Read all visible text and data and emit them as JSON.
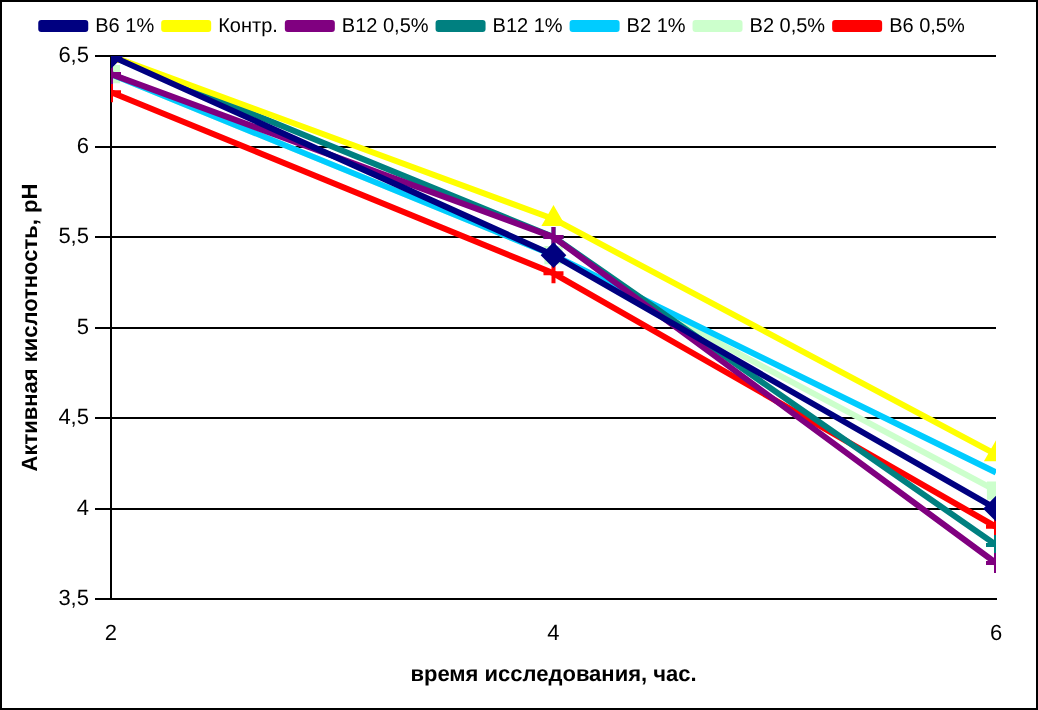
{
  "chart_data": {
    "type": "line",
    "xlabel": "время исследования, час.",
    "ylabel": "Активная кислотность, рН",
    "x": [
      2,
      4,
      6
    ],
    "xlim": [
      2,
      6
    ],
    "xticks": [
      2,
      4,
      6
    ],
    "ylim": [
      3.5,
      6.5
    ],
    "yticks": [
      {
        "value": 3.5,
        "label": "3,5"
      },
      4,
      {
        "value": 4.5,
        "label": "4,5"
      },
      5,
      {
        "value": 5.5,
        "label": "5,5"
      },
      6,
      {
        "value": 6.5,
        "label": "6,5"
      }
    ],
    "grid": "y",
    "legend": "top",
    "series": [
      {
        "name": "B6 1%",
        "color": "#000080",
        "marker": "diamond",
        "values": [
          6.5,
          5.4,
          4.0
        ]
      },
      {
        "name": "Контр.",
        "color": "#ffff00",
        "marker": "triangle",
        "values": [
          6.5,
          5.6,
          4.3
        ]
      },
      {
        "name": "B12 0,5%",
        "color": "#800080",
        "marker": "cross",
        "values": [
          6.4,
          5.5,
          3.7
        ]
      },
      {
        "name": "B12 1%",
        "color": "#008080",
        "marker": "cross",
        "values": [
          6.5,
          5.5,
          3.8
        ]
      },
      {
        "name": "B2 1%",
        "color": "#00ccff",
        "marker": "none",
        "values": [
          6.4,
          5.4,
          4.2
        ]
      },
      {
        "name": "B2 0,5%",
        "color": "#ccffcc",
        "marker": "square",
        "values": [
          6.4,
          5.4,
          4.1
        ]
      },
      {
        "name": "B6 0,5%",
        "color": "#ff0000",
        "marker": "cross",
        "values": [
          6.3,
          5.3,
          3.9
        ]
      }
    ]
  }
}
